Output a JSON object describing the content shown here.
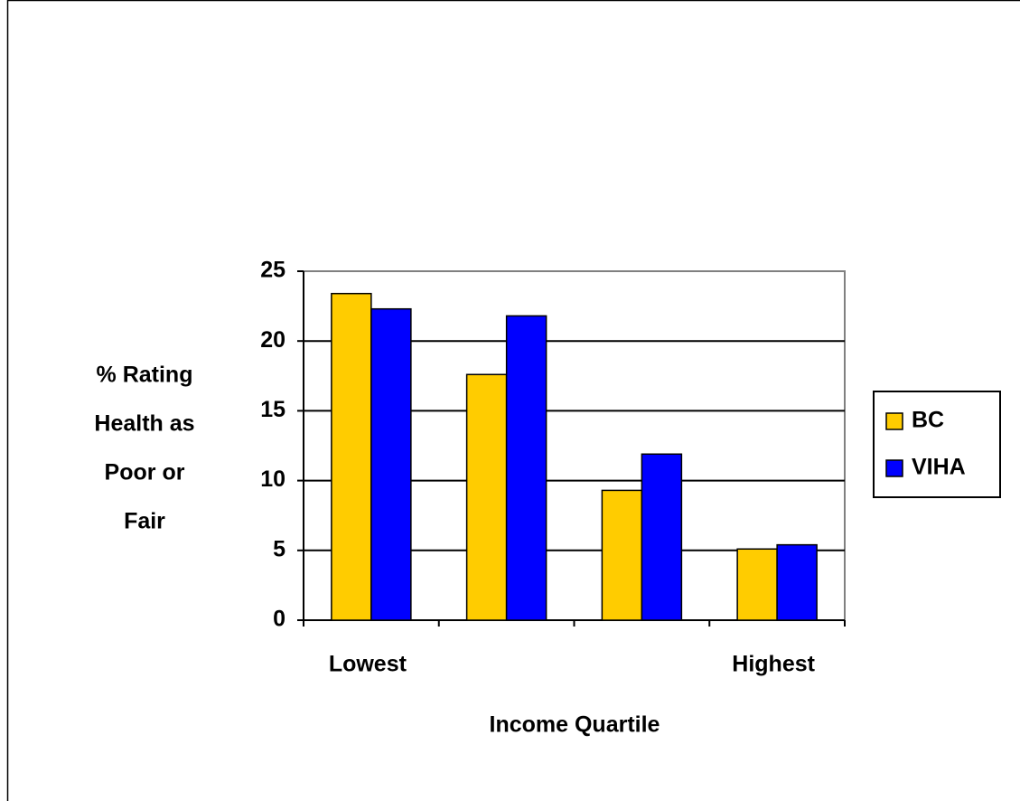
{
  "chart_data": {
    "type": "bar",
    "categories": [
      "Lowest",
      null,
      null,
      "Highest"
    ],
    "series": [
      {
        "name": "BC",
        "color": "#ffcc00",
        "values": [
          23.4,
          17.6,
          9.3,
          5.1
        ]
      },
      {
        "name": "VIHA",
        "color": "#0000ff",
        "values": [
          22.3,
          21.8,
          11.9,
          5.4
        ]
      }
    ],
    "xlabel": "Income Quartile",
    "ylabel": [
      "% Rating",
      "Health as",
      "Poor or",
      "Fair"
    ],
    "ylim": [
      0,
      25
    ],
    "yticks": [
      0,
      5,
      10,
      15,
      20,
      25
    ],
    "grid": true,
    "legend": "right"
  }
}
